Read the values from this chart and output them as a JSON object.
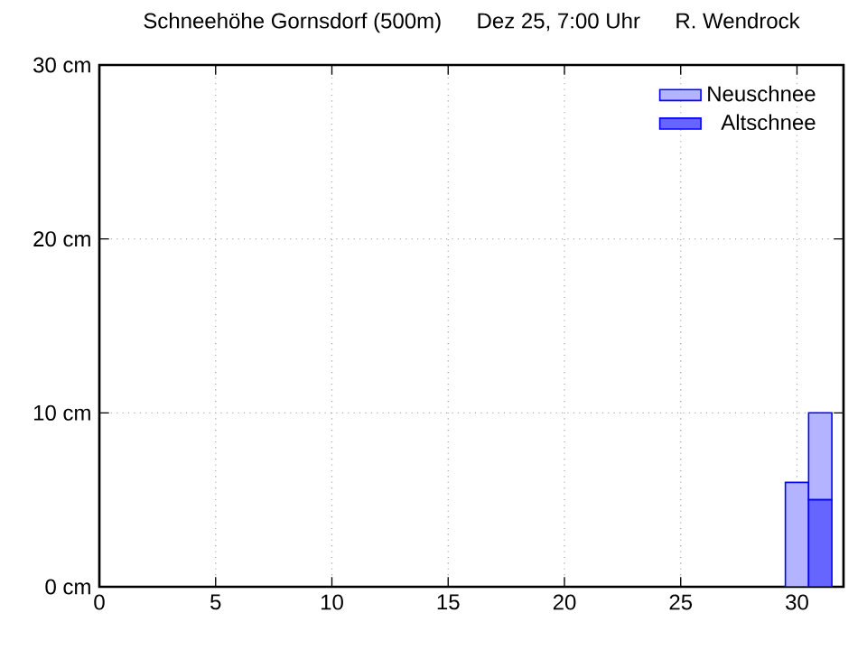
{
  "chart_data": {
    "type": "bar",
    "title": "Schneehöhe Gornsdorf (500m)",
    "annotations": [
      "Dez 25, 7:00 Uhr",
      "R. Wendrock"
    ],
    "x": [
      1,
      2,
      3,
      4,
      5,
      6,
      7,
      8,
      9,
      10,
      11,
      12,
      13,
      14,
      15,
      16,
      17,
      18,
      19,
      20,
      21,
      22,
      23,
      24,
      25,
      26,
      27,
      28,
      29,
      30,
      31
    ],
    "stacked": true,
    "series": [
      {
        "name": "Altschnee",
        "color": "#6666ff",
        "values": [
          0,
          0,
          0,
          0,
          0,
          0,
          0,
          0,
          0,
          0,
          0,
          0,
          0,
          0,
          0,
          0,
          0,
          0,
          0,
          0,
          0,
          0,
          0,
          0,
          0,
          0,
          0,
          0,
          0,
          0,
          5
        ]
      },
      {
        "name": "Neuschnee",
        "color": "#b3b3ff",
        "values": [
          0,
          0,
          0,
          0,
          0,
          0,
          0,
          0,
          0,
          0,
          0,
          0,
          0,
          0,
          0,
          0,
          0,
          0,
          0,
          0,
          0,
          0,
          0,
          0,
          0,
          0,
          0,
          0,
          0,
          6,
          5
        ]
      }
    ],
    "xlim": [
      0,
      32
    ],
    "xticks": [
      0,
      5,
      10,
      15,
      20,
      25,
      30
    ],
    "ylim": [
      0,
      30
    ],
    "yticks": [
      {
        "value": 0,
        "label": "0 cm"
      },
      {
        "value": 10,
        "label": "10 cm"
      },
      {
        "value": 20,
        "label": "20 cm"
      },
      {
        "value": 30,
        "label": "30 cm"
      }
    ],
    "grid": true,
    "legend": "top right"
  }
}
